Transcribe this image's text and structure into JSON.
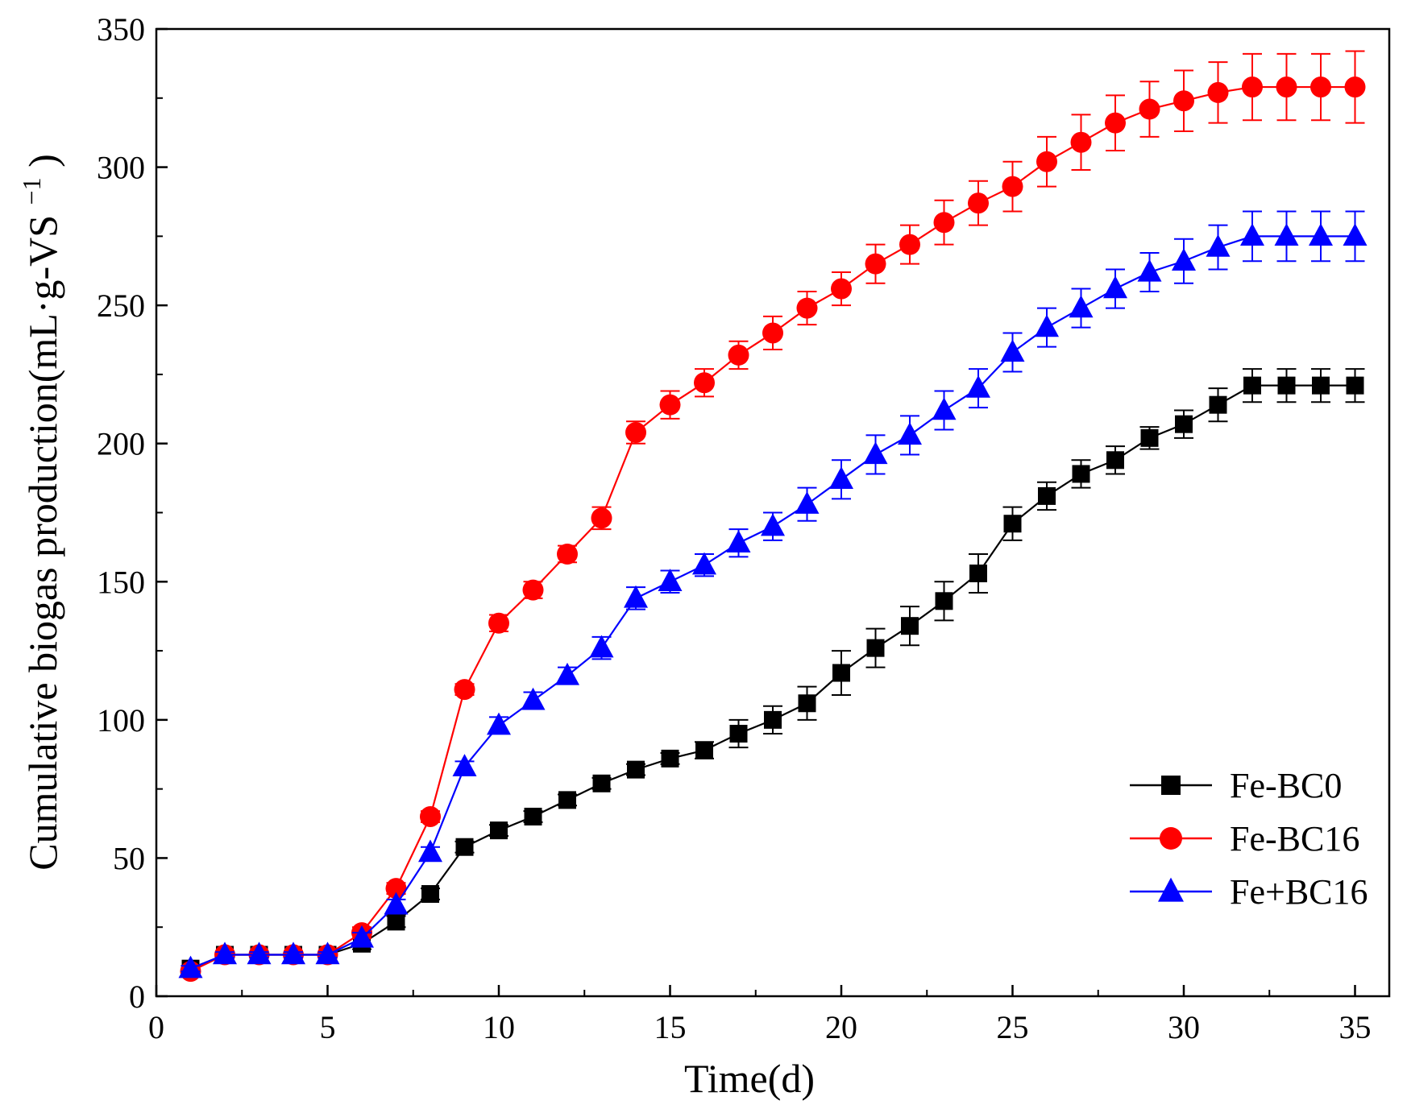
{
  "chart_data": {
    "type": "line",
    "title": "",
    "xlabel": "Time(d)",
    "ylabel": "Cumulative biogas production(mL·g-VS",
    "ylabel_sup": "−1",
    "ylabel_close": ")",
    "xlim": [
      0,
      36
    ],
    "ylim": [
      0,
      350
    ],
    "xticks": [
      0,
      5,
      10,
      15,
      20,
      25,
      30,
      35
    ],
    "yticks": [
      0,
      50,
      100,
      150,
      200,
      250,
      300,
      350
    ],
    "grid": false,
    "legend_position": "bottom-right",
    "x": [
      1,
      2,
      3,
      4,
      5,
      6,
      7,
      8,
      9,
      10,
      11,
      12,
      13,
      14,
      15,
      16,
      17,
      18,
      19,
      20,
      21,
      22,
      23,
      24,
      25,
      26,
      27,
      28,
      29,
      30,
      31,
      32,
      33,
      34,
      35
    ],
    "series": [
      {
        "name": "Fe-BC0",
        "marker": "square",
        "color": "#000000",
        "values": [
          10,
          15,
          15,
          15,
          15,
          19,
          27,
          37,
          54,
          60,
          65,
          71,
          77,
          82,
          86,
          89,
          95,
          100,
          106,
          117,
          126,
          134,
          143,
          153,
          171,
          181,
          189,
          194,
          202,
          207,
          214,
          221,
          221,
          221,
          221
        ],
        "errors": [
          1,
          1,
          1,
          1,
          1,
          2,
          2,
          2,
          2,
          2,
          2,
          2,
          2,
          2,
          2,
          3,
          5,
          5,
          6,
          8,
          7,
          7,
          7,
          7,
          6,
          5,
          5,
          5,
          4,
          5,
          6,
          6,
          6,
          6,
          6
        ]
      },
      {
        "name": "Fe-BC16",
        "marker": "circle",
        "color": "#ff0000",
        "values": [
          9,
          15,
          15,
          15,
          15,
          23,
          39,
          65,
          111,
          135,
          147,
          160,
          173,
          204,
          214,
          222,
          232,
          240,
          249,
          256,
          265,
          272,
          280,
          287,
          293,
          302,
          309,
          316,
          321,
          324,
          327,
          329,
          329,
          329,
          329
        ],
        "errors": [
          1,
          1,
          1,
          1,
          1,
          2,
          2,
          2,
          2,
          3,
          3,
          3,
          4,
          4,
          5,
          5,
          5,
          6,
          6,
          6,
          7,
          7,
          8,
          8,
          9,
          9,
          10,
          10,
          10,
          11,
          11,
          12,
          12,
          12,
          13
        ]
      },
      {
        "name": "Fe+BC16",
        "marker": "triangle",
        "color": "#0000ff",
        "values": [
          10,
          15,
          15,
          15,
          15,
          21,
          33,
          52,
          83,
          98,
          107,
          116,
          126,
          144,
          150,
          156,
          164,
          170,
          178,
          187,
          196,
          203,
          212,
          220,
          233,
          242,
          249,
          256,
          262,
          266,
          271,
          275,
          275,
          275,
          275
        ],
        "errors": [
          1,
          1,
          1,
          1,
          1,
          2,
          2,
          2,
          2,
          3,
          3,
          3,
          4,
          4,
          4,
          4,
          5,
          5,
          6,
          7,
          7,
          7,
          7,
          7,
          7,
          7,
          7,
          7,
          7,
          8,
          8,
          9,
          9,
          9,
          9
        ]
      }
    ]
  }
}
